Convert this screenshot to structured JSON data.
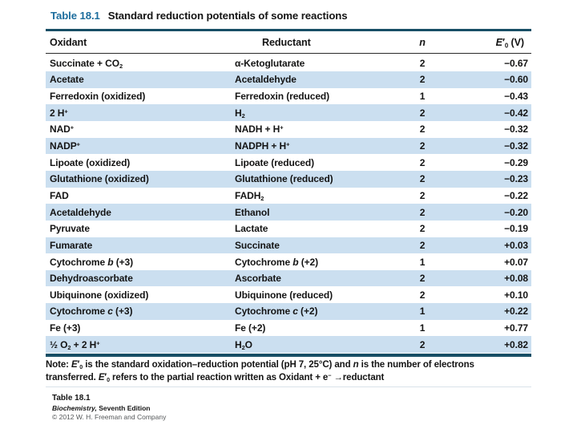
{
  "table": {
    "title_label": "Table 18.1",
    "title_text": "Standard reduction potentials of some reactions",
    "columns": {
      "oxidant": "Oxidant",
      "reductant": "Reductant",
      "n": "n",
      "e0": "*E*′_0_ (V)"
    },
    "rows": [
      {
        "oxidant": "Succinate + CO_2_",
        "reductant": "α-Ketoglutarate",
        "n": "2",
        "e0": "−0.67"
      },
      {
        "oxidant": "Acetate",
        "reductant": "Acetaldehyde",
        "n": "2",
        "e0": "−0.60"
      },
      {
        "oxidant": "Ferredoxin (oxidized)",
        "reductant": "Ferredoxin (reduced)",
        "n": "1",
        "e0": "−0.43"
      },
      {
        "oxidant": "2 H^+^",
        "reductant": "H_2_",
        "n": "2",
        "e0": "−0.42"
      },
      {
        "oxidant": "NAD^+^",
        "reductant": "NADH + H^+^",
        "n": "2",
        "e0": "−0.32"
      },
      {
        "oxidant": "NADP^+^",
        "reductant": "NADPH + H^+^",
        "n": "2",
        "e0": "−0.32"
      },
      {
        "oxidant": "Lipoate (oxidized)",
        "reductant": "Lipoate (reduced)",
        "n": "2",
        "e0": "−0.29"
      },
      {
        "oxidant": "Glutathione (oxidized)",
        "reductant": "Glutathione (reduced)",
        "n": "2",
        "e0": "−0.23"
      },
      {
        "oxidant": "FAD",
        "reductant": "FADH_2_",
        "n": "2",
        "e0": "−0.22"
      },
      {
        "oxidant": "Acetaldehyde",
        "reductant": "Ethanol",
        "n": "2",
        "e0": "−0.20"
      },
      {
        "oxidant": "Pyruvate",
        "reductant": "Lactate",
        "n": "2",
        "e0": "−0.19"
      },
      {
        "oxidant": "Fumarate",
        "reductant": "Succinate",
        "n": "2",
        "e0": "+0.03"
      },
      {
        "oxidant": "Cytochrome *b* (+3)",
        "reductant": "Cytochrome *b* (+2)",
        "n": "1",
        "e0": "+0.07"
      },
      {
        "oxidant": "Dehydroascorbate",
        "reductant": "Ascorbate",
        "n": "2",
        "e0": "+0.08"
      },
      {
        "oxidant": "Ubiquinone (oxidized)",
        "reductant": "Ubiquinone (reduced)",
        "n": "2",
        "e0": "+0.10"
      },
      {
        "oxidant": "Cytochrome *c* (+3)",
        "reductant": "Cytochrome *c* (+2)",
        "n": "1",
        "e0": "+0.22"
      },
      {
        "oxidant": "Fe (+3)",
        "reductant": "Fe (+2)",
        "n": "1",
        "e0": "+0.77"
      },
      {
        "oxidant": "½ O_2_ + 2 H^+^",
        "reductant": "H_2_O",
        "n": "2",
        "e0": "+0.82"
      }
    ],
    "note_lines": [
      "Note: *E*′_0_ is the standard oxidation–reduction potential (pH 7, 25°C) and *n* is the number of electrons",
      "transferred. *E*′_0_ refers to the partial reaction written as Oxidant + e^−^ →reductant"
    ]
  },
  "credit": {
    "table_ref": "Table 18.1",
    "book": "*Biochemistry,* Seventh Edition",
    "copyright": "© 2012 W. H. Freeman and Company"
  },
  "colors": {
    "title_accent": "#1d6d9d",
    "thick_rule": "#184f66",
    "row_stripe": "#cbdff0",
    "text": "#141414",
    "copyright_text": "#55585a"
  }
}
